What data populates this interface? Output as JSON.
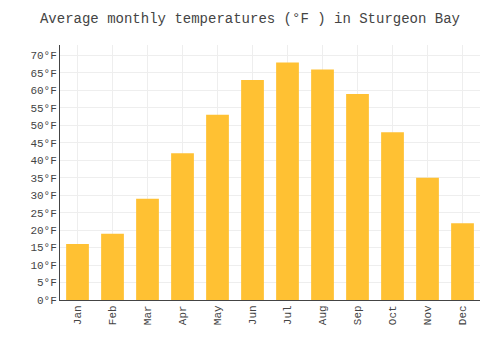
{
  "chart_data": {
    "type": "bar",
    "title": "Average monthly temperatures (°F ) in Sturgeon Bay",
    "categories": [
      "Jan",
      "Feb",
      "Mar",
      "Apr",
      "May",
      "Jun",
      "Jul",
      "Aug",
      "Sep",
      "Oct",
      "Nov",
      "Dec"
    ],
    "values": [
      16,
      19,
      29,
      42,
      53,
      63,
      68,
      66,
      59,
      48,
      35,
      22
    ],
    "color": "#FFC133",
    "ylim": [
      0,
      73
    ],
    "yticks": [
      {
        "value": 0,
        "label": "0°F"
      },
      {
        "value": 5,
        "label": "5°F"
      },
      {
        "value": 10,
        "label": "10°F"
      },
      {
        "value": 15,
        "label": "15°F"
      },
      {
        "value": 20,
        "label": "20°F"
      },
      {
        "value": 25,
        "label": "25°F"
      },
      {
        "value": 30,
        "label": "30°F"
      },
      {
        "value": 35,
        "label": "35°F"
      },
      {
        "value": 40,
        "label": "40°F"
      },
      {
        "value": 45,
        "label": "45°F"
      },
      {
        "value": 50,
        "label": "50°F"
      },
      {
        "value": 55,
        "label": "55°F"
      },
      {
        "value": 60,
        "label": "60°F"
      },
      {
        "value": 65,
        "label": "65°F"
      },
      {
        "value": 70,
        "label": "70°F"
      }
    ],
    "grid": true
  }
}
